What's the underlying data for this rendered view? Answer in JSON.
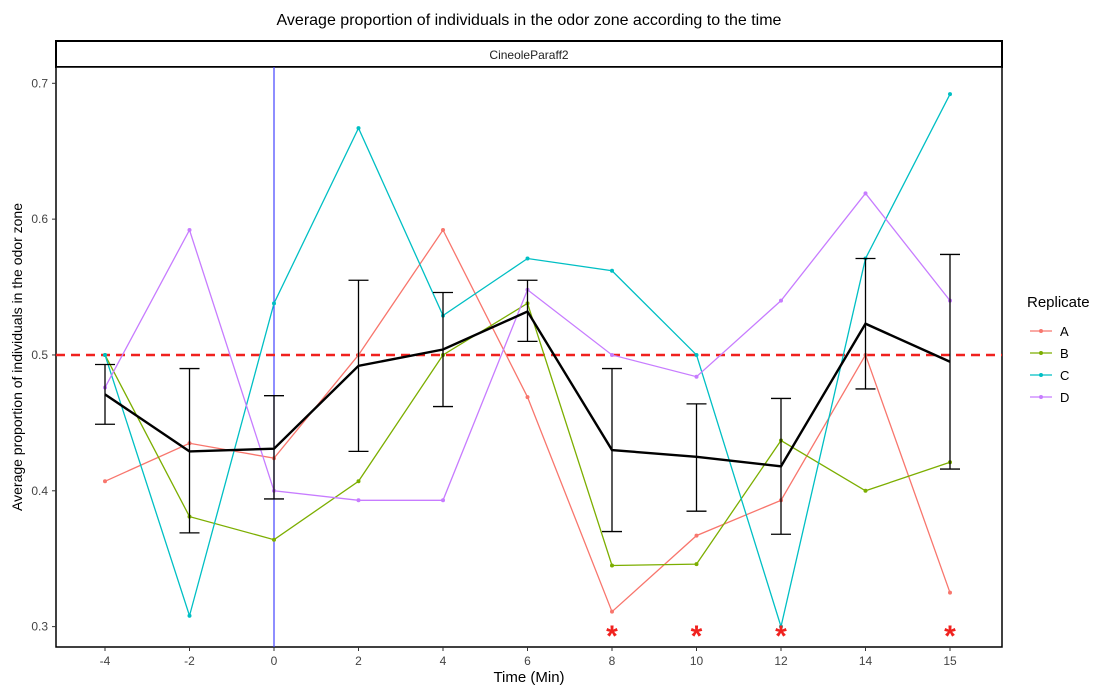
{
  "chart_data": {
    "type": "line",
    "title": "Average proportion of individuals in the odor zone according to the time",
    "facet_label": "CineoleParaff2",
    "xlabel": "Time (Min)",
    "ylabel": "Average proportion of individuals in the odor zone",
    "x": [
      "-4",
      "-2",
      "0",
      "2",
      "4",
      "6",
      "8",
      "10",
      "12",
      "14",
      "15"
    ],
    "ylim": [
      0.285,
      0.712
    ],
    "yticks": [
      0.3,
      0.4,
      0.5,
      0.6,
      0.7
    ],
    "ytick_labels": [
      "0.3",
      "0.4",
      "0.5",
      "0.6",
      "0.7"
    ],
    "grid": false,
    "legend": {
      "title": "Replicate",
      "position": "right"
    },
    "series": [
      {
        "name": "A",
        "color": "#F8766D",
        "values": [
          0.407,
          0.435,
          0.424,
          0.5,
          0.592,
          0.469,
          0.311,
          0.367,
          0.393,
          0.5,
          0.325
        ]
      },
      {
        "name": "B",
        "color": "#7CAE00",
        "values": [
          0.5,
          0.381,
          0.364,
          0.407,
          0.5,
          0.538,
          0.345,
          0.346,
          0.437,
          0.4,
          0.421
        ]
      },
      {
        "name": "C",
        "color": "#00BFC4",
        "values": [
          0.5,
          0.308,
          0.538,
          0.667,
          0.529,
          0.571,
          0.562,
          0.5,
          0.3,
          0.571,
          0.692
        ]
      },
      {
        "name": "D",
        "color": "#C77CFF",
        "values": [
          0.476,
          0.592,
          0.4,
          0.393,
          0.393,
          0.548,
          0.5,
          0.484,
          0.54,
          0.619,
          0.54
        ]
      }
    ],
    "mean": {
      "color": "#000000",
      "values": [
        0.471,
        0.429,
        0.431,
        0.492,
        0.504,
        0.532,
        0.43,
        0.425,
        0.418,
        0.523,
        0.495
      ],
      "error_low": [
        0.449,
        0.369,
        0.394,
        0.429,
        0.462,
        0.51,
        0.37,
        0.385,
        0.368,
        0.475,
        0.416
      ],
      "error_high": [
        0.493,
        0.49,
        0.47,
        0.555,
        0.546,
        0.555,
        0.49,
        0.464,
        0.468,
        0.571,
        0.574
      ]
    },
    "reference_line": {
      "y": 0.5,
      "color": "#F0211E",
      "style": "dashed"
    },
    "vertical_line": {
      "x": "0",
      "color": "#4444FF"
    },
    "significance_marks": {
      "symbol": "*",
      "color": "#F0211E",
      "at": [
        "8",
        "10",
        "12",
        "15"
      ]
    }
  }
}
